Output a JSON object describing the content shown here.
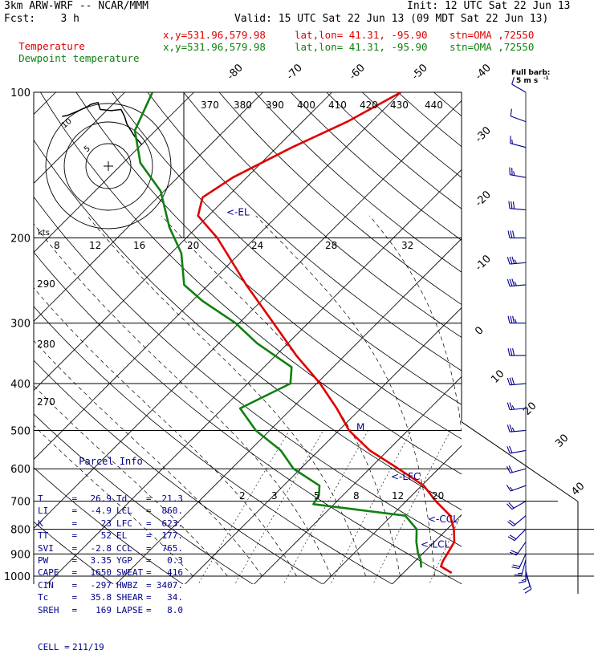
{
  "header": {
    "model": "3km ARW-WRF -- NCAR/MMM",
    "init": "Init: 12 UTC Sat 22 Jun 13",
    "fcst": "Fcst:    3 h",
    "valid": "Valid: 15 UTC Sat 22 Jun 13 (09 MDT Sat 22 Jun 13)",
    "temp_line": {
      "label": "Temperature",
      "xy": "x,y=531.96,579.98",
      "latlon": "lat,lon= 41.31, -95.90",
      "stn": "stn=OMA ,72550"
    },
    "dew_line": {
      "label": "Dewpoint temperature",
      "xy": "x,y=531.96,579.98",
      "latlon": "lat,lon= 41.31, -95.90",
      "stn": "stn=OMA ,72550"
    }
  },
  "colors": {
    "temperature": "#e00000",
    "dewpoint": "#108010",
    "parcel": "#00008b",
    "grid": "#000000"
  },
  "barb_legend": {
    "line1": "Full barb:",
    "line2": "5 m s",
    "sup": "-1"
  },
  "hodograph": {
    "kts_label": "kts",
    "ring_labels": [
      "5",
      "10"
    ]
  },
  "parcel_info": {
    "title": "Parcel Info",
    "rows": [
      [
        "T",
        "26.9",
        "Td",
        "21.3"
      ],
      [
        "LI",
        "-4.9",
        "LCL",
        "860."
      ],
      [
        "K",
        "23",
        "LFC",
        "623."
      ],
      [
        "TT",
        "52",
        "EL",
        "177."
      ],
      [
        "SVI",
        "-2.8",
        "CCL",
        "765."
      ],
      [
        "PW",
        "3.35",
        "YGP",
        "0.3"
      ],
      [
        "CAPE",
        "1650",
        "SWEAT",
        "416"
      ],
      [
        "CIN",
        "-297",
        "HWBZ",
        "3407."
      ],
      [
        "Tc",
        "35.8",
        "SHEAR",
        "34."
      ],
      [
        "SREH",
        "169",
        "LAPSE",
        "8.0"
      ]
    ],
    "cell_label": "CELL =",
    "cell_value": "211/19"
  },
  "level_markers": {
    "el": "<-EL",
    "lfc": "<-LFC",
    "ccl": "<-CCL",
    "lcl": "<-LCL",
    "m": "M"
  },
  "chart_data": {
    "type": "line",
    "subtype": "skew-T log-p",
    "pressure_axis": {
      "ticks": [
        100,
        200,
        300,
        400,
        500,
        600,
        700,
        800,
        900,
        1000
      ],
      "scale": "log",
      "range": [
        100,
        1000
      ]
    },
    "isotherm_labels": [
      -80,
      -70,
      -60,
      -50,
      -40,
      -30,
      -20,
      -10,
      0,
      10,
      20,
      30,
      40
    ],
    "theta_labels": [
      270,
      280,
      290
    ],
    "theta_top_labels": [
      370,
      380,
      390,
      400,
      410,
      420,
      430,
      440
    ],
    "mixing_ratio_labels": [
      8,
      12,
      16,
      20,
      24,
      28,
      32
    ],
    "mixing_ratio_low_labels": [
      2,
      3,
      5,
      8,
      12,
      20
    ],
    "grid": true,
    "series": [
      {
        "name": "Temperature",
        "points": [
          [
            985,
            27.0
          ],
          [
            955,
            24.5
          ],
          [
            930,
            24.0
          ],
          [
            900,
            23.6
          ],
          [
            850,
            22.9
          ],
          [
            800,
            21.0
          ],
          [
            750,
            18.5
          ],
          [
            700,
            14.3
          ],
          [
            650,
            10.3
          ],
          [
            600,
            4.2
          ],
          [
            550,
            -2.6
          ],
          [
            500,
            -8.5
          ],
          [
            450,
            -13.5
          ],
          [
            400,
            -19.5
          ],
          [
            350,
            -27.0
          ],
          [
            300,
            -35.0
          ],
          [
            250,
            -44.5
          ],
          [
            200,
            -55.5
          ],
          [
            180,
            -61.5
          ],
          [
            165,
            -63.5
          ],
          [
            150,
            -62.0
          ],
          [
            130,
            -57.8
          ],
          [
            115,
            -53.5
          ],
          [
            100,
            -50.0
          ]
        ]
      },
      {
        "name": "Dewpoint temperature",
        "points": [
          [
            960,
            21.8
          ],
          [
            925,
            20.6
          ],
          [
            900,
            19.4
          ],
          [
            850,
            17.4
          ],
          [
            800,
            15.6
          ],
          [
            750,
            12.0
          ],
          [
            710,
            -3.0
          ],
          [
            680,
            -3.5
          ],
          [
            650,
            -4.8
          ],
          [
            600,
            -11.0
          ],
          [
            550,
            -15.5
          ],
          [
            500,
            -22.0
          ],
          [
            450,
            -27.5
          ],
          [
            400,
            -23.8
          ],
          [
            370,
            -26.0
          ],
          [
            330,
            -34.5
          ],
          [
            300,
            -40.5
          ],
          [
            270,
            -48.5
          ],
          [
            250,
            -53.5
          ],
          [
            215,
            -58.5
          ],
          [
            190,
            -64.0
          ],
          [
            160,
            -70.5
          ],
          [
            140,
            -77.5
          ],
          [
            120,
            -83.0
          ],
          [
            100,
            -86.0
          ]
        ]
      }
    ],
    "hodograph_trace": [
      [
        0.58,
        0.37
      ],
      [
        0.45,
        0.52
      ],
      [
        0.32,
        0.73
      ],
      [
        0.28,
        0.86
      ],
      [
        0.22,
        0.98
      ],
      [
        0.05,
        0.96
      ],
      [
        -0.14,
        0.98
      ],
      [
        -0.18,
        1.1
      ],
      [
        -0.3,
        1.07
      ],
      [
        -0.38,
        1.02
      ],
      [
        -0.58,
        0.93
      ],
      [
        -0.7,
        0.88
      ],
      [
        -0.8,
        0.86
      ]
    ],
    "wind_profile": [
      {
        "p": 990,
        "spd_kt": 10,
        "dir": 160
      },
      {
        "p": 975,
        "spd_kt": 10,
        "dir": 165
      },
      {
        "p": 950,
        "spd_kt": 15,
        "dir": 180
      },
      {
        "p": 925,
        "spd_kt": 15,
        "dir": 195
      },
      {
        "p": 900,
        "spd_kt": 20,
        "dir": 205
      },
      {
        "p": 850,
        "spd_kt": 20,
        "dir": 215
      },
      {
        "p": 800,
        "spd_kt": 20,
        "dir": 225
      },
      {
        "p": 750,
        "spd_kt": 20,
        "dir": 230
      },
      {
        "p": 700,
        "spd_kt": 20,
        "dir": 240
      },
      {
        "p": 650,
        "spd_kt": 15,
        "dir": 250
      },
      {
        "p": 600,
        "spd_kt": 20,
        "dir": 255
      },
      {
        "p": 550,
        "spd_kt": 20,
        "dir": 260
      },
      {
        "p": 500,
        "spd_kt": 25,
        "dir": 265
      },
      {
        "p": 450,
        "spd_kt": 25,
        "dir": 265
      },
      {
        "p": 400,
        "spd_kt": 30,
        "dir": 265
      },
      {
        "p": 350,
        "spd_kt": 30,
        "dir": 270
      },
      {
        "p": 300,
        "spd_kt": 35,
        "dir": 270
      },
      {
        "p": 250,
        "spd_kt": 35,
        "dir": 265
      },
      {
        "p": 225,
        "spd_kt": 35,
        "dir": 265
      },
      {
        "p": 200,
        "spd_kt": 30,
        "dir": 270
      },
      {
        "p": 175,
        "spd_kt": 30,
        "dir": 275
      },
      {
        "p": 150,
        "spd_kt": 25,
        "dir": 280
      },
      {
        "p": 130,
        "spd_kt": 15,
        "dir": 285
      },
      {
        "p": 115,
        "spd_kt": 10,
        "dir": 290
      },
      {
        "p": 100,
        "spd_kt": 10,
        "dir": 300
      }
    ]
  }
}
